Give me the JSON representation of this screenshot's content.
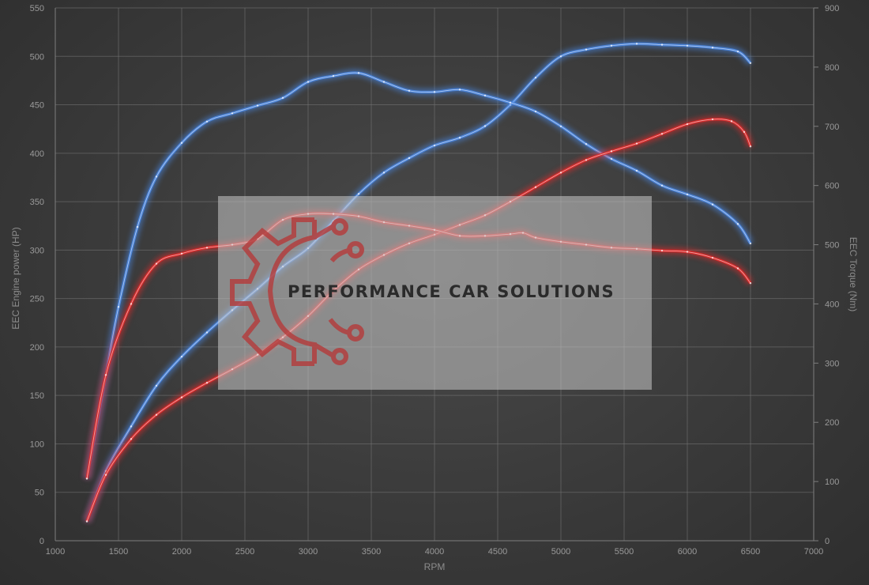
{
  "chart_data": {
    "type": "line",
    "xlabel": "RPM",
    "ylabel": "EEC Engine power (HP)",
    "ylabel_right": "EEC Torque (Nm)",
    "xlim": [
      1000,
      7000
    ],
    "ylim": [
      0,
      550
    ],
    "ylim_right": [
      0,
      900
    ],
    "x_ticks": [
      1000,
      1500,
      2000,
      2500,
      3000,
      3500,
      4000,
      4500,
      5000,
      5500,
      6000,
      6500,
      7000
    ],
    "y_ticks": [
      0,
      50,
      100,
      150,
      200,
      250,
      300,
      350,
      400,
      450,
      500,
      550
    ],
    "y_ticks_right": [
      0,
      100,
      200,
      300,
      400,
      500,
      600,
      700,
      800,
      900
    ],
    "grid": true,
    "series": [
      {
        "axis": "left",
        "color": "#4a86e0",
        "points": [
          [
            1250,
            20
          ],
          [
            1400,
            72
          ],
          [
            1600,
            118
          ],
          [
            1800,
            160
          ],
          [
            2000,
            190
          ],
          [
            2200,
            215
          ],
          [
            2400,
            238
          ],
          [
            2600,
            260
          ],
          [
            2800,
            283
          ],
          [
            3000,
            302
          ],
          [
            3200,
            330
          ],
          [
            3400,
            358
          ],
          [
            3600,
            380
          ],
          [
            3800,
            395
          ],
          [
            4000,
            408
          ],
          [
            4200,
            416
          ],
          [
            4400,
            428
          ],
          [
            4600,
            450
          ],
          [
            4800,
            478
          ],
          [
            5000,
            500
          ],
          [
            5200,
            507
          ],
          [
            5400,
            511
          ],
          [
            5600,
            513
          ],
          [
            5800,
            512
          ],
          [
            6000,
            511
          ],
          [
            6200,
            509
          ],
          [
            6400,
            505
          ],
          [
            6500,
            493
          ]
        ]
      },
      {
        "axis": "right",
        "color": "#4a86e0",
        "points": [
          [
            1250,
            105
          ],
          [
            1400,
            280
          ],
          [
            1500,
            395
          ],
          [
            1650,
            530
          ],
          [
            1800,
            615
          ],
          [
            2000,
            672
          ],
          [
            2200,
            708
          ],
          [
            2400,
            722
          ],
          [
            2600,
            735
          ],
          [
            2800,
            748
          ],
          [
            3000,
            775
          ],
          [
            3200,
            785
          ],
          [
            3400,
            790
          ],
          [
            3600,
            775
          ],
          [
            3800,
            760
          ],
          [
            4000,
            758
          ],
          [
            4200,
            762
          ],
          [
            4400,
            752
          ],
          [
            4600,
            740
          ],
          [
            4800,
            725
          ],
          [
            5000,
            700
          ],
          [
            5200,
            670
          ],
          [
            5400,
            645
          ],
          [
            5600,
            625
          ],
          [
            5800,
            600
          ],
          [
            6000,
            585
          ],
          [
            6200,
            568
          ],
          [
            6400,
            535
          ],
          [
            6500,
            502
          ]
        ]
      },
      {
        "axis": "left",
        "color": "#e02a2a",
        "points": [
          [
            1250,
            20
          ],
          [
            1400,
            68
          ],
          [
            1600,
            105
          ],
          [
            1800,
            130
          ],
          [
            2000,
            148
          ],
          [
            2200,
            163
          ],
          [
            2400,
            177
          ],
          [
            2600,
            192
          ],
          [
            2800,
            210
          ],
          [
            3000,
            232
          ],
          [
            3200,
            258
          ],
          [
            3400,
            280
          ],
          [
            3600,
            295
          ],
          [
            3800,
            307
          ],
          [
            4000,
            316
          ],
          [
            4200,
            326
          ],
          [
            4400,
            336
          ],
          [
            4600,
            350
          ],
          [
            4800,
            365
          ],
          [
            5000,
            380
          ],
          [
            5200,
            393
          ],
          [
            5400,
            402
          ],
          [
            5600,
            410
          ],
          [
            5800,
            420
          ],
          [
            6000,
            430
          ],
          [
            6200,
            435
          ],
          [
            6350,
            433
          ],
          [
            6450,
            422
          ],
          [
            6500,
            407
          ]
        ]
      },
      {
        "axis": "right",
        "color": "#e02a2a",
        "points": [
          [
            1250,
            105
          ],
          [
            1400,
            280
          ],
          [
            1600,
            400
          ],
          [
            1800,
            468
          ],
          [
            2000,
            485
          ],
          [
            2200,
            495
          ],
          [
            2400,
            500
          ],
          [
            2600,
            510
          ],
          [
            2800,
            542
          ],
          [
            3000,
            552
          ],
          [
            3200,
            552
          ],
          [
            3400,
            548
          ],
          [
            3600,
            538
          ],
          [
            3800,
            532
          ],
          [
            4000,
            525
          ],
          [
            4200,
            515
          ],
          [
            4400,
            515
          ],
          [
            4600,
            518
          ],
          [
            4700,
            520
          ],
          [
            4800,
            512
          ],
          [
            5000,
            505
          ],
          [
            5200,
            500
          ],
          [
            5400,
            495
          ],
          [
            5600,
            493
          ],
          [
            5800,
            490
          ],
          [
            6000,
            488
          ],
          [
            6200,
            478
          ],
          [
            6400,
            460
          ],
          [
            6500,
            435
          ]
        ]
      }
    ]
  },
  "watermark": {
    "text": "PERFORMANCE CAR SOLUTIONS"
  }
}
